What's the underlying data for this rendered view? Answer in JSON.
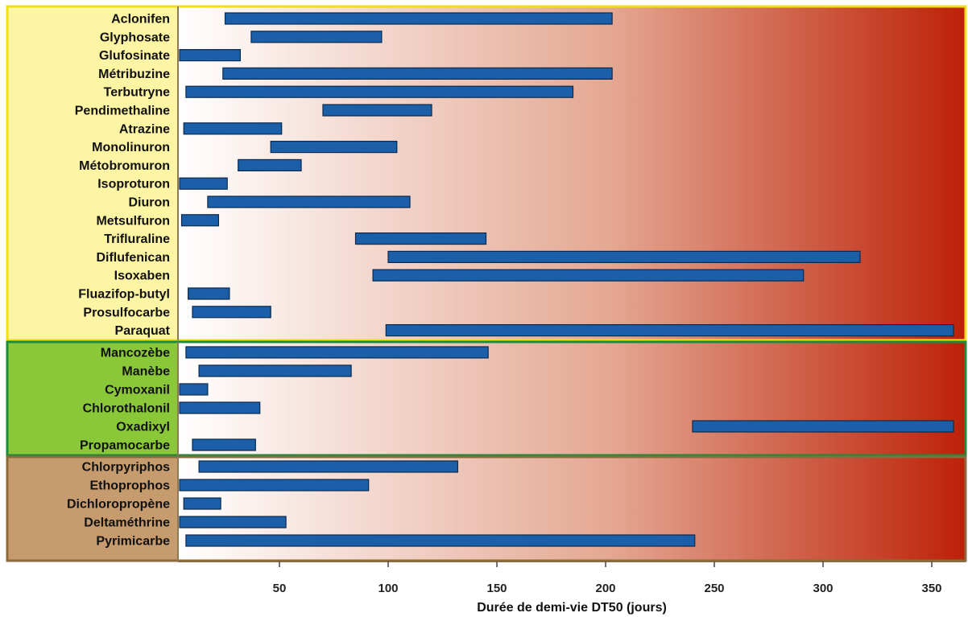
{
  "chart_data": {
    "type": "bar",
    "orientation": "horizontal-range",
    "xlabel": "Durée de demi-vie DT50 (jours)",
    "xlim": [
      0,
      360
    ],
    "xticks": [
      50,
      100,
      150,
      200,
      250,
      300,
      350
    ],
    "colors": {
      "bar": "#1a5fa8",
      "bar_stroke": "#0d2a4e",
      "herbicides_bg": "#fdf4a4",
      "herbicides_border": "#f2e010",
      "fongicides_bg": "#8ac83a",
      "fongicides_border": "#1f8a3a",
      "insecticides_bg": "#c69b6e",
      "insecticides_border": "#8c6a3e",
      "gradient_start": "#ffffff",
      "gradient_end": "#bd2108"
    },
    "groups": [
      {
        "key": "herbicides",
        "items": [
          {
            "name": "Aclonifen",
            "range": [
              25,
              203
            ]
          },
          {
            "name": "Glyphosate",
            "range": [
              37,
              97
            ]
          },
          {
            "name": "Glufosinate",
            "range": [
              3,
              32
            ]
          },
          {
            "name": "Métribuzine",
            "range": [
              24,
              203
            ]
          },
          {
            "name": "Terbutryne",
            "range": [
              7,
              185
            ]
          },
          {
            "name": "Pendimethaline",
            "range": [
              70,
              120
            ]
          },
          {
            "name": "Atrazine",
            "range": [
              6,
              51
            ]
          },
          {
            "name": "Monolinuron",
            "range": [
              46,
              104
            ]
          },
          {
            "name": "Métobromuron",
            "range": [
              31,
              60
            ]
          },
          {
            "name": "Isoproturon",
            "range": [
              4,
              26
            ]
          },
          {
            "name": "Diuron",
            "range": [
              17,
              110
            ]
          },
          {
            "name": "Metsulfuron",
            "range": [
              5,
              22
            ]
          },
          {
            "name": "Trifluraline",
            "range": [
              85,
              145
            ]
          },
          {
            "name": "Diflufenican",
            "range": [
              100,
              317
            ]
          },
          {
            "name": "Isoxaben",
            "range": [
              93,
              291
            ]
          },
          {
            "name": "Fluazifop-butyl",
            "range": [
              8,
              27
            ]
          },
          {
            "name": "Prosulfocarbe",
            "range": [
              10,
              46
            ]
          },
          {
            "name": "Paraquat",
            "range": [
              99,
              360
            ]
          }
        ]
      },
      {
        "key": "fongicides",
        "items": [
          {
            "name": "Mancozèbe",
            "range": [
              7,
              146
            ]
          },
          {
            "name": "Manèbe",
            "range": [
              13,
              83
            ]
          },
          {
            "name": "Cymoxanil",
            "range": [
              3,
              17
            ]
          },
          {
            "name": "Chlorothalonil",
            "range": [
              4,
              41
            ]
          },
          {
            "name": "Oxadixyl",
            "range": [
              240,
              360
            ]
          },
          {
            "name": "Propamocarbe",
            "range": [
              10,
              39
            ]
          }
        ]
      },
      {
        "key": "insecticides",
        "items": [
          {
            "name": "Chlorpyriphos",
            "range": [
              13,
              132
            ]
          },
          {
            "name": "Ethoprophos",
            "range": [
              3,
              91
            ]
          },
          {
            "name": "Dichloropropène",
            "range": [
              6,
              23
            ]
          },
          {
            "name": "Deltaméthrine",
            "range": [
              4,
              53
            ]
          },
          {
            "name": "Pyrimicarbe",
            "range": [
              7,
              241
            ]
          }
        ]
      }
    ]
  }
}
